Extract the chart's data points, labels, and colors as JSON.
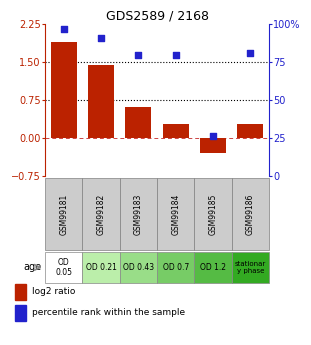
{
  "title": "GDS2589 / 2168",
  "samples": [
    "GSM99181",
    "GSM99182",
    "GSM99183",
    "GSM99184",
    "GSM99185",
    "GSM99186"
  ],
  "log2_ratio": [
    1.9,
    1.45,
    0.62,
    0.28,
    -0.3,
    0.28
  ],
  "percentile_rank": [
    97,
    91,
    80,
    80,
    26,
    81
  ],
  "age_labels": [
    "OD\n0.05",
    "OD 0.21",
    "OD 0.43",
    "OD 0.7",
    "OD 1.2",
    "stationar\ny phase"
  ],
  "age_colors": [
    "#ffffff",
    "#bbeeaa",
    "#99dd88",
    "#77cc66",
    "#55bb44",
    "#33aa22"
  ],
  "sample_bg": "#cccccc",
  "bar_color": "#bb2200",
  "dot_color": "#2222cc",
  "yticks_left": [
    -0.75,
    0,
    0.75,
    1.5,
    2.25
  ],
  "yticks_right": [
    0,
    25,
    50,
    75,
    100
  ],
  "hline_values": [
    0.75,
    1.5
  ],
  "ylim": [
    -0.75,
    2.25
  ],
  "percentile_ylim": [
    0,
    100
  ],
  "legend_red": "log2 ratio",
  "legend_blue": "percentile rank within the sample",
  "age_row_label": "age"
}
